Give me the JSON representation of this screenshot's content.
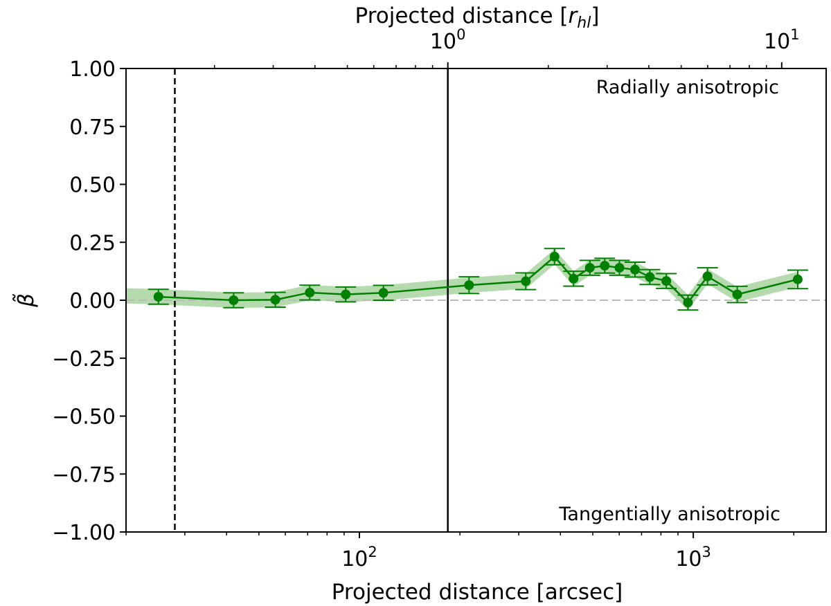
{
  "chart_data": {
    "type": "line",
    "xlabel": "Projected distance [arcsec]",
    "xlabel_top": "Projected distance [r_hl]",
    "xlabel_top_prefix": "Projected distance [",
    "xlabel_top_symbol": "r",
    "xlabel_top_subscript": "hl",
    "xlabel_top_suffix": "]",
    "ylabel": "β̃",
    "x_scale": "log",
    "xlim": [
      20,
      2500
    ],
    "ylim": [
      -1.0,
      1.0
    ],
    "x_ticks": [
      {
        "value": 100,
        "base": "10",
        "exp": "2"
      },
      {
        "value": 1000,
        "base": "10",
        "exp": "3"
      }
    ],
    "x_minor_ticks": [
      20,
      30,
      40,
      50,
      60,
      70,
      80,
      90,
      200,
      300,
      400,
      500,
      600,
      700,
      800,
      900,
      2000
    ],
    "top_axis": {
      "scale_arcsec_per_unit": 184,
      "ticks": [
        {
          "value": 1,
          "base": "10",
          "exp": "0"
        },
        {
          "value": 10,
          "base": "10",
          "exp": "1"
        }
      ],
      "minor_ticks": [
        0.2,
        0.3,
        0.4,
        0.5,
        0.6,
        0.7,
        0.8,
        0.9,
        2,
        3,
        4,
        5,
        6,
        7,
        8,
        9
      ]
    },
    "y_ticks": [
      "1.00",
      "0.75",
      "0.50",
      "0.25",
      "0.00",
      "−0.25",
      "−0.50",
      "−0.75",
      "−1.00"
    ],
    "series": [
      {
        "name": "beta",
        "color": "#008000",
        "band_color": "#a8d4a0",
        "x": [
          25,
          42,
          56,
          71,
          91,
          118,
          213,
          315,
          384,
          438,
          490,
          543,
          601,
          669,
          741,
          830,
          964,
          1103,
          1354,
          2055
        ],
        "y": [
          0.015,
          0.0,
          0.002,
          0.033,
          0.025,
          0.032,
          0.065,
          0.082,
          0.188,
          0.093,
          0.14,
          0.149,
          0.14,
          0.132,
          0.1,
          0.083,
          -0.01,
          0.103,
          0.025,
          0.09
        ],
        "err": [
          0.032,
          0.032,
          0.032,
          0.032,
          0.032,
          0.032,
          0.036,
          0.036,
          0.035,
          0.032,
          0.032,
          0.032,
          0.032,
          0.032,
          0.032,
          0.032,
          0.032,
          0.037,
          0.035,
          0.04
        ]
      }
    ],
    "vlines": [
      {
        "x": 28,
        "style": "dashed",
        "color": "#000000"
      },
      {
        "x": 184,
        "style": "solid",
        "color": "#000000"
      }
    ],
    "hlines": [
      {
        "y": 0,
        "style": "dashed",
        "color": "#bbbbbb"
      }
    ],
    "annotations": [
      {
        "text": "Radially anisotropic",
        "position": "top-right"
      },
      {
        "text": "Tangentially anisotropic",
        "position": "bottom-right"
      }
    ]
  }
}
